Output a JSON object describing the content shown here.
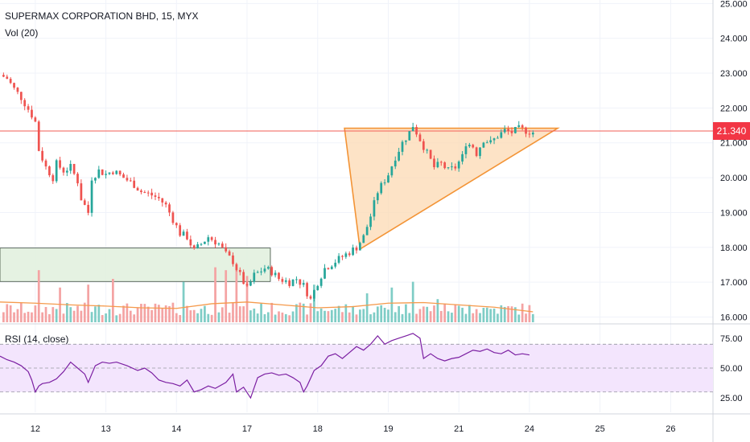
{
  "chart_data": {
    "type": "candlestick",
    "title": "SUPERMAX CORPORATION BHD, 15, MYX",
    "volume_label": "Vol (20)",
    "rsi_label": "RSI (14, close)",
    "last_price": "21.340",
    "price_axis": {
      "ticks": [
        "25.000",
        "24.000",
        "23.000",
        "22.000",
        "21.000",
        "20.000",
        "19.000",
        "18.000",
        "17.000",
        "16.000"
      ],
      "range": [
        15.85,
        25.1
      ]
    },
    "rsi_axis": {
      "ticks": [
        "75.00",
        "50.00",
        "25.00"
      ],
      "range": [
        13,
        85
      ],
      "band": [
        30,
        70
      ]
    },
    "x_ticks": [
      "12",
      "13",
      "14",
      "17",
      "18",
      "19",
      "21",
      "24",
      "25",
      "26"
    ],
    "x_tick_positions": [
      0.5,
      1.5,
      2.5,
      3.5,
      4.5,
      5.5,
      6.5,
      7.5,
      8.5,
      9.5
    ],
    "x_range": [
      0,
      10.1
    ],
    "key_price": [
      [
        0.0,
        22.95
      ],
      [
        0.1,
        22.85
      ],
      [
        0.2,
        22.55
      ],
      [
        0.3,
        22.3
      ],
      [
        0.45,
        21.8
      ],
      [
        0.5,
        21.6
      ],
      [
        0.55,
        20.8
      ],
      [
        0.65,
        20.3
      ],
      [
        0.75,
        20.0
      ],
      [
        0.8,
        20.4
      ],
      [
        0.9,
        20.2
      ],
      [
        1.0,
        20.3
      ],
      [
        1.1,
        19.9
      ],
      [
        1.15,
        19.4
      ],
      [
        1.25,
        19.0
      ],
      [
        1.3,
        20.0
      ],
      [
        1.4,
        20.2
      ],
      [
        1.5,
        20.1
      ],
      [
        1.6,
        20.2
      ],
      [
        1.75,
        20.0
      ],
      [
        1.9,
        19.8
      ],
      [
        2.0,
        19.6
      ],
      [
        2.15,
        19.5
      ],
      [
        2.25,
        19.4
      ],
      [
        2.35,
        19.2
      ],
      [
        2.45,
        18.8
      ],
      [
        2.55,
        18.4
      ],
      [
        2.65,
        18.3
      ],
      [
        2.75,
        17.9
      ],
      [
        2.85,
        18.1
      ],
      [
        2.95,
        18.3
      ],
      [
        3.1,
        18.1
      ],
      [
        3.2,
        17.8
      ],
      [
        3.3,
        17.6
      ],
      [
        3.4,
        17.2
      ],
      [
        3.5,
        16.8
      ],
      [
        3.6,
        17.2
      ],
      [
        3.75,
        17.4
      ],
      [
        3.85,
        17.3
      ],
      [
        3.95,
        17.1
      ],
      [
        4.1,
        17.0
      ],
      [
        4.2,
        17.1
      ],
      [
        4.3,
        16.9
      ],
      [
        4.4,
        16.5
      ],
      [
        4.5,
        17.0
      ],
      [
        4.6,
        17.4
      ],
      [
        4.75,
        17.6
      ],
      [
        4.9,
        17.8
      ],
      [
        5.05,
        18.0
      ],
      [
        5.15,
        18.3
      ],
      [
        5.25,
        18.9
      ],
      [
        5.35,
        19.6
      ],
      [
        5.5,
        20.1
      ],
      [
        5.6,
        20.6
      ],
      [
        5.7,
        21.0
      ],
      [
        5.8,
        21.3
      ],
      [
        5.85,
        21.5
      ],
      [
        5.95,
        21.1
      ],
      [
        6.05,
        20.7
      ],
      [
        6.15,
        20.3
      ],
      [
        6.25,
        20.4
      ],
      [
        6.35,
        20.2
      ],
      [
        6.45,
        20.3
      ],
      [
        6.55,
        20.6
      ],
      [
        6.6,
        21.0
      ],
      [
        6.7,
        20.9
      ],
      [
        6.75,
        20.7
      ],
      [
        6.85,
        21.1
      ],
      [
        6.95,
        21.0
      ],
      [
        7.05,
        21.2
      ],
      [
        7.15,
        21.35
      ],
      [
        7.25,
        21.3
      ],
      [
        7.35,
        21.4
      ],
      [
        7.45,
        21.35
      ],
      [
        7.55,
        21.3
      ]
    ],
    "key_rsi": [
      [
        0.0,
        60
      ],
      [
        0.1,
        57
      ],
      [
        0.2,
        55
      ],
      [
        0.3,
        52
      ],
      [
        0.4,
        47
      ],
      [
        0.45,
        40
      ],
      [
        0.5,
        30
      ],
      [
        0.55,
        35
      ],
      [
        0.6,
        37
      ],
      [
        0.7,
        38
      ],
      [
        0.8,
        41
      ],
      [
        0.9,
        47
      ],
      [
        1.0,
        55
      ],
      [
        1.1,
        50
      ],
      [
        1.2,
        45
      ],
      [
        1.25,
        38
      ],
      [
        1.35,
        52
      ],
      [
        1.45,
        55
      ],
      [
        1.55,
        54
      ],
      [
        1.65,
        55
      ],
      [
        1.8,
        52
      ],
      [
        1.95,
        48
      ],
      [
        2.05,
        50
      ],
      [
        2.15,
        46
      ],
      [
        2.25,
        40
      ],
      [
        2.35,
        38
      ],
      [
        2.45,
        37
      ],
      [
        2.55,
        35
      ],
      [
        2.65,
        40
      ],
      [
        2.75,
        30
      ],
      [
        2.85,
        32
      ],
      [
        2.95,
        35
      ],
      [
        3.05,
        33
      ],
      [
        3.2,
        38
      ],
      [
        3.3,
        45
      ],
      [
        3.35,
        30
      ],
      [
        3.45,
        34
      ],
      [
        3.55,
        25
      ],
      [
        3.65,
        42
      ],
      [
        3.75,
        45
      ],
      [
        3.85,
        46
      ],
      [
        3.95,
        44
      ],
      [
        4.05,
        45
      ],
      [
        4.15,
        42
      ],
      [
        4.25,
        38
      ],
      [
        4.3,
        30
      ],
      [
        4.35,
        35
      ],
      [
        4.45,
        48
      ],
      [
        4.55,
        52
      ],
      [
        4.65,
        60
      ],
      [
        4.75,
        62
      ],
      [
        4.85,
        58
      ],
      [
        4.95,
        63
      ],
      [
        5.05,
        68
      ],
      [
        5.15,
        65
      ],
      [
        5.25,
        70
      ],
      [
        5.35,
        77
      ],
      [
        5.45,
        70
      ],
      [
        5.55,
        73
      ],
      [
        5.65,
        75
      ],
      [
        5.75,
        77
      ],
      [
        5.85,
        79
      ],
      [
        5.95,
        75
      ],
      [
        6.0,
        58
      ],
      [
        6.1,
        62
      ],
      [
        6.2,
        58
      ],
      [
        6.3,
        56
      ],
      [
        6.4,
        58
      ],
      [
        6.5,
        59
      ],
      [
        6.6,
        62
      ],
      [
        6.7,
        65
      ],
      [
        6.8,
        64
      ],
      [
        6.9,
        66
      ],
      [
        7.0,
        63
      ],
      [
        7.1,
        62
      ],
      [
        7.2,
        65
      ],
      [
        7.3,
        61
      ],
      [
        7.4,
        62
      ],
      [
        7.5,
        61
      ]
    ],
    "key_volume_ma": [
      [
        0.0,
        0.35
      ],
      [
        0.5,
        0.33
      ],
      [
        1.0,
        0.3
      ],
      [
        1.5,
        0.28
      ],
      [
        2.0,
        0.25
      ],
      [
        2.5,
        0.24
      ],
      [
        3.0,
        0.32
      ],
      [
        3.5,
        0.35
      ],
      [
        4.0,
        0.3
      ],
      [
        4.5,
        0.25
      ],
      [
        5.0,
        0.27
      ],
      [
        5.5,
        0.33
      ],
      [
        6.0,
        0.34
      ],
      [
        6.5,
        0.3
      ],
      [
        7.0,
        0.26
      ],
      [
        7.55,
        0.18
      ]
    ],
    "volume_spikes": [
      [
        0.55,
        0.9
      ],
      [
        0.85,
        0.6
      ],
      [
        1.25,
        0.65
      ],
      [
        1.6,
        0.75
      ],
      [
        2.6,
        0.7
      ],
      [
        3.05,
        0.95
      ],
      [
        3.2,
        0.9
      ],
      [
        3.35,
        1.0
      ],
      [
        3.5,
        0.8
      ],
      [
        4.45,
        0.65
      ],
      [
        5.2,
        0.5
      ],
      [
        5.55,
        0.6
      ],
      [
        5.85,
        0.7
      ],
      [
        6.2,
        0.4
      ],
      [
        6.65,
        0.3
      ]
    ],
    "demand_zone": {
      "x": [
        0,
        3.83
      ],
      "y": [
        17.02,
        17.98
      ]
    },
    "triangle": [
      [
        4.88,
        21.42
      ],
      [
        7.9,
        21.42
      ],
      [
        5.1,
        17.95
      ]
    ],
    "colors": {
      "up": "#26a69a",
      "down": "#ef5350",
      "volume_up": "#7fcdc6",
      "volume_down": "#f4a3a3",
      "volume_ma": "#f59a4c",
      "rsi_line": "#7b1fa2",
      "rsi_band": "#f3e5fd",
      "price_line": "#f25c54",
      "zone_fill": "#e2f1df",
      "zone_border": "#3a4a3a",
      "triangle_fill": "#fcd9b3",
      "triangle_border": "#f39436",
      "label_bg": "#f23645"
    }
  }
}
